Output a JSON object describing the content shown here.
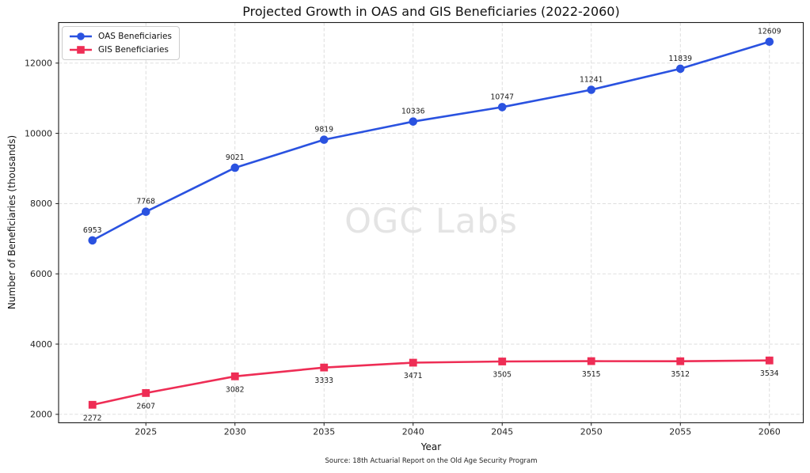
{
  "title": "Projected Growth in OAS and GIS Beneficiaries (2022-2060)",
  "watermark": "OGC Labs",
  "source_note": "Source: 18th Actuarial Report on the Old Age Security Program",
  "chart_data": {
    "type": "line",
    "title": "Projected Growth in OAS and GIS Beneficiaries (2022-2060)",
    "xlabel": "Year",
    "ylabel": "Number of Beneficiaries (thousands)",
    "x": [
      2022,
      2025,
      2030,
      2035,
      2040,
      2045,
      2050,
      2055,
      2060
    ],
    "series": [
      {
        "name": "OAS Beneficiaries",
        "color": "#2a52e0",
        "marker": "circle",
        "label_position": "above",
        "values": [
          6953,
          7768,
          9021,
          9819,
          10336,
          10747,
          11241,
          11839,
          12609
        ]
      },
      {
        "name": "GIS Beneficiaries",
        "color": "#ee2d55",
        "marker": "square",
        "label_position": "below",
        "values": [
          2272,
          2607,
          3082,
          3333,
          3471,
          3505,
          3515,
          3512,
          3534
        ]
      }
    ],
    "xticks": [
      2025,
      2030,
      2035,
      2040,
      2045,
      2050,
      2055,
      2060
    ],
    "yticks": [
      2000,
      4000,
      6000,
      8000,
      10000,
      12000
    ],
    "xlim": [
      2020.1,
      2061.9
    ],
    "ylim": [
      1760,
      13155
    ],
    "grid": true,
    "grid_style": "dashed",
    "legend_position": "upper left",
    "data_labels": true
  },
  "colors": {
    "grid": "#d9d9d9",
    "spine": "#1a1a1a",
    "tick_label": "#262626",
    "data_label": "#1a1a1a",
    "watermark": "#e4e4e4"
  }
}
